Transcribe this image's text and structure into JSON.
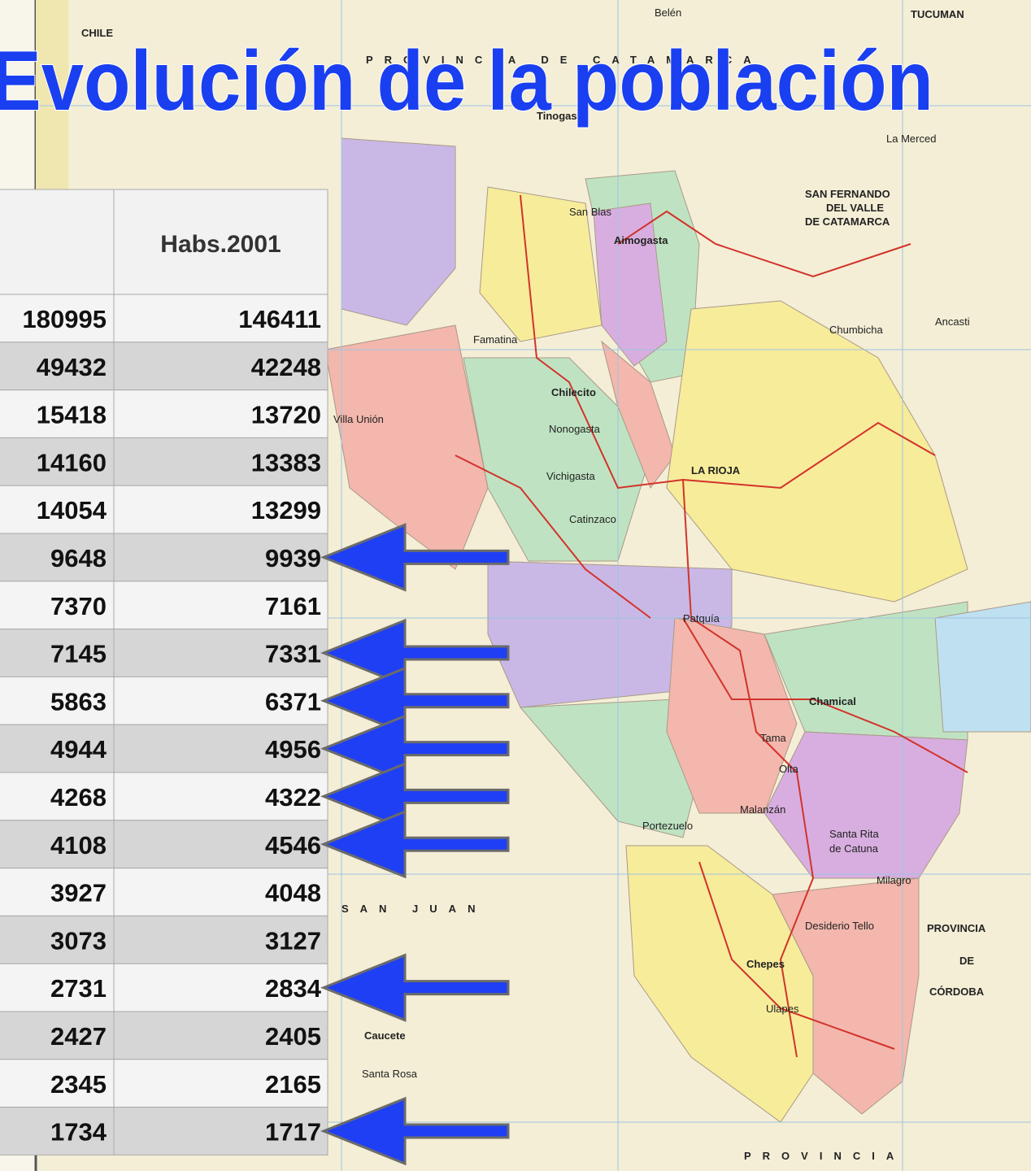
{
  "title": "Evolución de la población",
  "table": {
    "header": [
      "Habs.2001"
    ],
    "rows": [
      [
        180995,
        146411
      ],
      [
        49432,
        42248
      ],
      [
        15418,
        13720
      ],
      [
        14160,
        13383
      ],
      [
        14054,
        13299
      ],
      [
        9648,
        9939
      ],
      [
        7370,
        7161
      ],
      [
        7145,
        7331
      ],
      [
        5863,
        6371
      ],
      [
        4944,
        4956
      ],
      [
        4268,
        4322
      ],
      [
        4108,
        4546
      ],
      [
        3927,
        4048
      ],
      [
        3073,
        3127
      ],
      [
        2731,
        2834
      ],
      [
        2427,
        2405
      ],
      [
        2345,
        2165
      ],
      [
        1734,
        1717
      ]
    ]
  },
  "map": {
    "labels": [
      "CHILE",
      "PROVINCIA DE CATAMARCA",
      "TUCUMAN",
      "Belén",
      "Tinogasta",
      "La Merced",
      "SAN FERNANDO",
      "DEL VALLE",
      "DE CATAMARCA",
      "Aimogasta",
      "San Blas",
      "Famatina",
      "Chilecito",
      "Nonogasta",
      "Vichigasta",
      "Catinzaco",
      "Villa Unión",
      "LA RIOJA",
      "Chumbicha",
      "Ancasti",
      "Patquía",
      "Chamical",
      "Tama",
      "Olta",
      "Malanzán",
      "Portezuelo",
      "Santa Rita",
      "de Catuna",
      "Milagro",
      "Desiderio Tello",
      "Chepes",
      "Ulapes",
      "PROVINCIA",
      "DE",
      "CÓRDOBA",
      "SAN JUAN",
      "Caucete",
      "Santa Rosa",
      "PROVINCIA"
    ]
  }
}
